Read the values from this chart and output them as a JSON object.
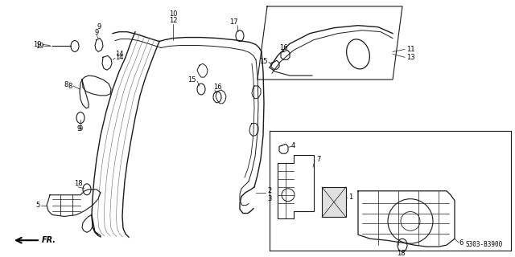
{
  "bg_color": "#ffffff",
  "line_color": "#1a1a1a",
  "part_number_code": "S303-B3900",
  "fr_label": "FR."
}
